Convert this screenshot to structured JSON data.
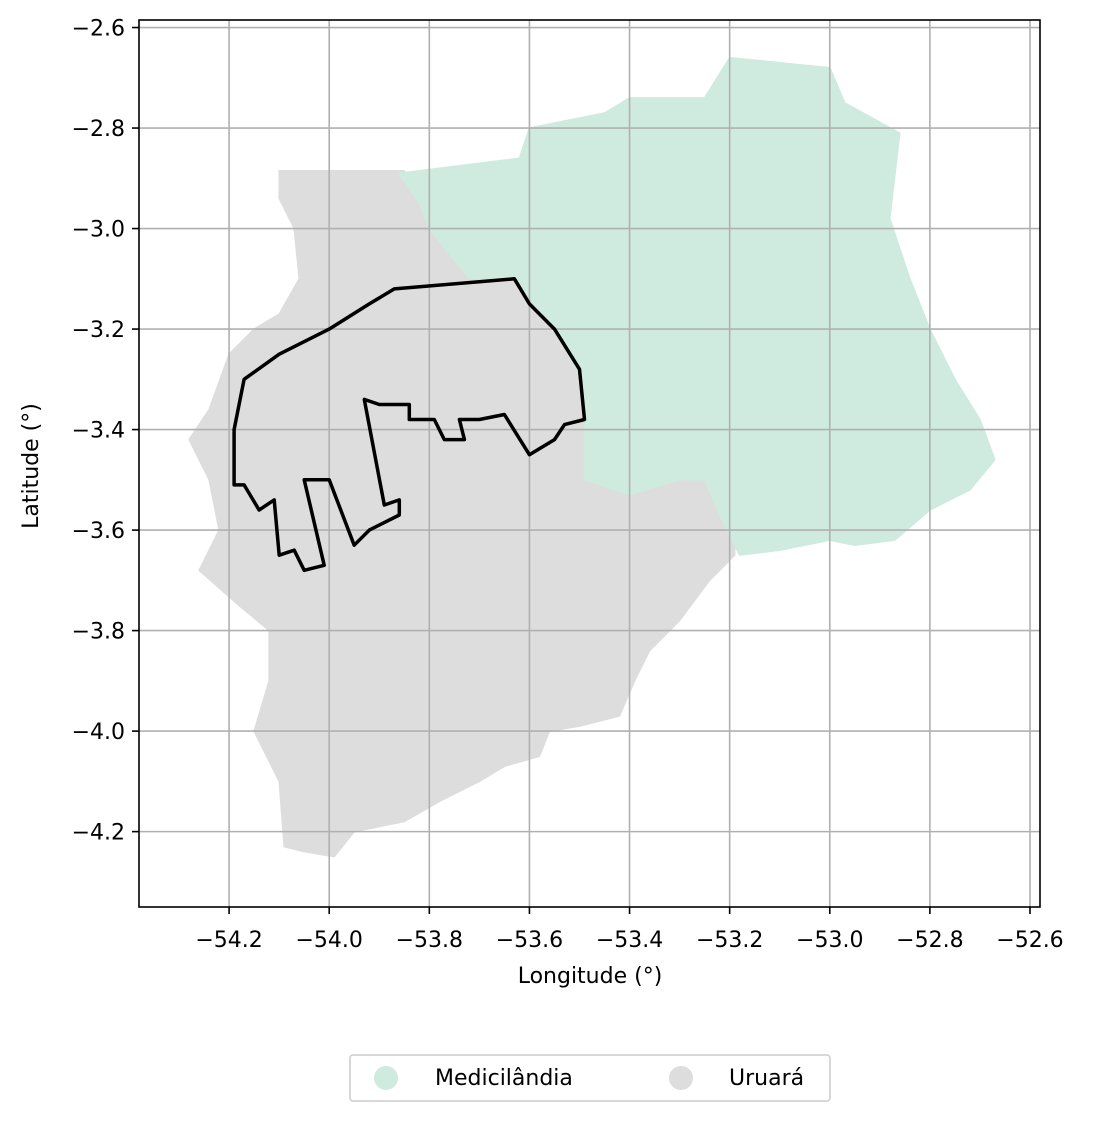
{
  "chart_data": {
    "type": "map",
    "xlabel": "Longitude (°)",
    "ylabel": "Latitude (°)",
    "xlim": [
      -54.38,
      -52.58
    ],
    "ylim": [
      -4.35,
      -2.585
    ],
    "x_ticks": [
      -54.2,
      -54.0,
      -53.8,
      -53.6,
      -53.4,
      -53.2,
      -53.0,
      -52.8,
      -52.6
    ],
    "y_ticks": [
      -2.6,
      -2.8,
      -3.0,
      -3.2,
      -3.4,
      -3.6,
      -3.8,
      -4.0,
      -4.2
    ],
    "x_tick_labels": [
      "−54.2",
      "−54.0",
      "−53.8",
      "−53.6",
      "−53.4",
      "−53.2",
      "−53.0",
      "−52.8",
      "−52.6"
    ],
    "y_tick_labels": [
      "−2.6",
      "−2.8",
      "−3.0",
      "−3.2",
      "−3.4",
      "−3.6",
      "−3.8",
      "−4.0",
      "−4.2"
    ],
    "grid": true,
    "legend": {
      "placement": "bottom-center",
      "entries": [
        {
          "label": "Medicilândia",
          "color": "#cfeadf"
        },
        {
          "label": "Uruará",
          "color": "#dddddd"
        }
      ]
    },
    "regions": [
      {
        "name": "Uruará",
        "color": "#dddddd",
        "coords": [
          [
            -54.1,
            -2.885
          ],
          [
            -53.85,
            -2.885
          ],
          [
            -53.82,
            -2.95
          ],
          [
            -53.8,
            -3.0
          ],
          [
            -53.72,
            -3.1
          ],
          [
            -53.63,
            -3.1
          ],
          [
            -53.55,
            -3.2
          ],
          [
            -53.5,
            -3.29
          ],
          [
            -53.49,
            -3.38
          ],
          [
            -53.49,
            -3.42
          ],
          [
            -53.48,
            -3.5
          ],
          [
            -53.4,
            -3.53
          ],
          [
            -53.3,
            -3.5
          ],
          [
            -53.25,
            -3.5
          ],
          [
            -53.22,
            -3.57
          ],
          [
            -53.19,
            -3.62
          ],
          [
            -53.19,
            -3.65
          ],
          [
            -53.24,
            -3.7
          ],
          [
            -53.3,
            -3.78
          ],
          [
            -53.36,
            -3.84
          ],
          [
            -53.39,
            -3.9
          ],
          [
            -53.42,
            -3.97
          ],
          [
            -53.5,
            -3.99
          ],
          [
            -53.56,
            -4.0
          ],
          [
            -53.58,
            -4.05
          ],
          [
            -53.65,
            -4.07
          ],
          [
            -53.7,
            -4.1
          ],
          [
            -53.78,
            -4.14
          ],
          [
            -53.85,
            -4.18
          ],
          [
            -53.95,
            -4.2
          ],
          [
            -53.99,
            -4.25
          ],
          [
            -54.05,
            -4.24
          ],
          [
            -54.09,
            -4.23
          ],
          [
            -54.1,
            -4.1
          ],
          [
            -54.15,
            -4.0
          ],
          [
            -54.12,
            -3.9
          ],
          [
            -54.12,
            -3.8
          ],
          [
            -54.18,
            -3.75
          ],
          [
            -54.26,
            -3.68
          ],
          [
            -54.22,
            -3.6
          ],
          [
            -54.24,
            -3.5
          ],
          [
            -54.28,
            -3.42
          ],
          [
            -54.24,
            -3.36
          ],
          [
            -54.2,
            -3.25
          ],
          [
            -54.15,
            -3.2
          ],
          [
            -54.1,
            -3.17
          ],
          [
            -54.06,
            -3.1
          ],
          [
            -54.07,
            -3.0
          ],
          [
            -54.1,
            -2.94
          ]
        ]
      },
      {
        "name": "Medicilândia",
        "color": "#cfeadf",
        "coords": [
          [
            -53.86,
            -2.89
          ],
          [
            -53.62,
            -2.86
          ],
          [
            -53.6,
            -2.8
          ],
          [
            -53.45,
            -2.77
          ],
          [
            -53.4,
            -2.74
          ],
          [
            -53.25,
            -2.74
          ],
          [
            -53.2,
            -2.66
          ],
          [
            -53.1,
            -2.67
          ],
          [
            -53.0,
            -2.68
          ],
          [
            -52.97,
            -2.75
          ],
          [
            -52.86,
            -2.81
          ],
          [
            -52.88,
            -2.98
          ],
          [
            -52.84,
            -3.1
          ],
          [
            -52.8,
            -3.2
          ],
          [
            -52.75,
            -3.3
          ],
          [
            -52.7,
            -3.38
          ],
          [
            -52.67,
            -3.46
          ],
          [
            -52.72,
            -3.52
          ],
          [
            -52.8,
            -3.56
          ],
          [
            -52.87,
            -3.62
          ],
          [
            -52.95,
            -3.63
          ],
          [
            -53.0,
            -3.62
          ],
          [
            -53.1,
            -3.64
          ],
          [
            -53.18,
            -3.65
          ],
          [
            -53.22,
            -3.57
          ],
          [
            -53.25,
            -3.5
          ],
          [
            -53.3,
            -3.5
          ],
          [
            -53.4,
            -3.53
          ],
          [
            -53.49,
            -3.5
          ],
          [
            -53.49,
            -3.42
          ],
          [
            -53.49,
            -3.38
          ],
          [
            -53.5,
            -3.29
          ],
          [
            -53.55,
            -3.2
          ],
          [
            -53.63,
            -3.1
          ],
          [
            -53.72,
            -3.1
          ],
          [
            -53.8,
            -3.0
          ],
          [
            -53.82,
            -2.95
          ]
        ]
      }
    ],
    "outline": {
      "color": "#000000",
      "coords": [
        [
          -54.19,
          -3.51
        ],
        [
          -54.19,
          -3.4
        ],
        [
          -54.17,
          -3.3
        ],
        [
          -54.1,
          -3.25
        ],
        [
          -54.0,
          -3.2
        ],
        [
          -53.92,
          -3.15
        ],
        [
          -53.87,
          -3.12
        ],
        [
          -53.63,
          -3.1
        ],
        [
          -53.6,
          -3.15
        ],
        [
          -53.55,
          -3.2
        ],
        [
          -53.5,
          -3.28
        ],
        [
          -53.49,
          -3.38
        ],
        [
          -53.53,
          -3.39
        ],
        [
          -53.55,
          -3.42
        ],
        [
          -53.6,
          -3.45
        ],
        [
          -53.65,
          -3.37
        ],
        [
          -53.7,
          -3.38
        ],
        [
          -53.74,
          -3.38
        ],
        [
          -53.73,
          -3.42
        ],
        [
          -53.77,
          -3.42
        ],
        [
          -53.79,
          -3.38
        ],
        [
          -53.84,
          -3.38
        ],
        [
          -53.84,
          -3.35
        ],
        [
          -53.9,
          -3.35
        ],
        [
          -53.93,
          -3.34
        ],
        [
          -53.89,
          -3.55
        ],
        [
          -53.86,
          -3.54
        ],
        [
          -53.86,
          -3.57
        ],
        [
          -53.92,
          -3.6
        ],
        [
          -53.95,
          -3.63
        ],
        [
          -54.0,
          -3.5
        ],
        [
          -54.05,
          -3.5
        ],
        [
          -54.01,
          -3.67
        ],
        [
          -54.05,
          -3.68
        ],
        [
          -54.07,
          -3.64
        ],
        [
          -54.1,
          -3.65
        ],
        [
          -54.11,
          -3.54
        ],
        [
          -54.14,
          -3.56
        ],
        [
          -54.17,
          -3.51
        ]
      ]
    }
  }
}
